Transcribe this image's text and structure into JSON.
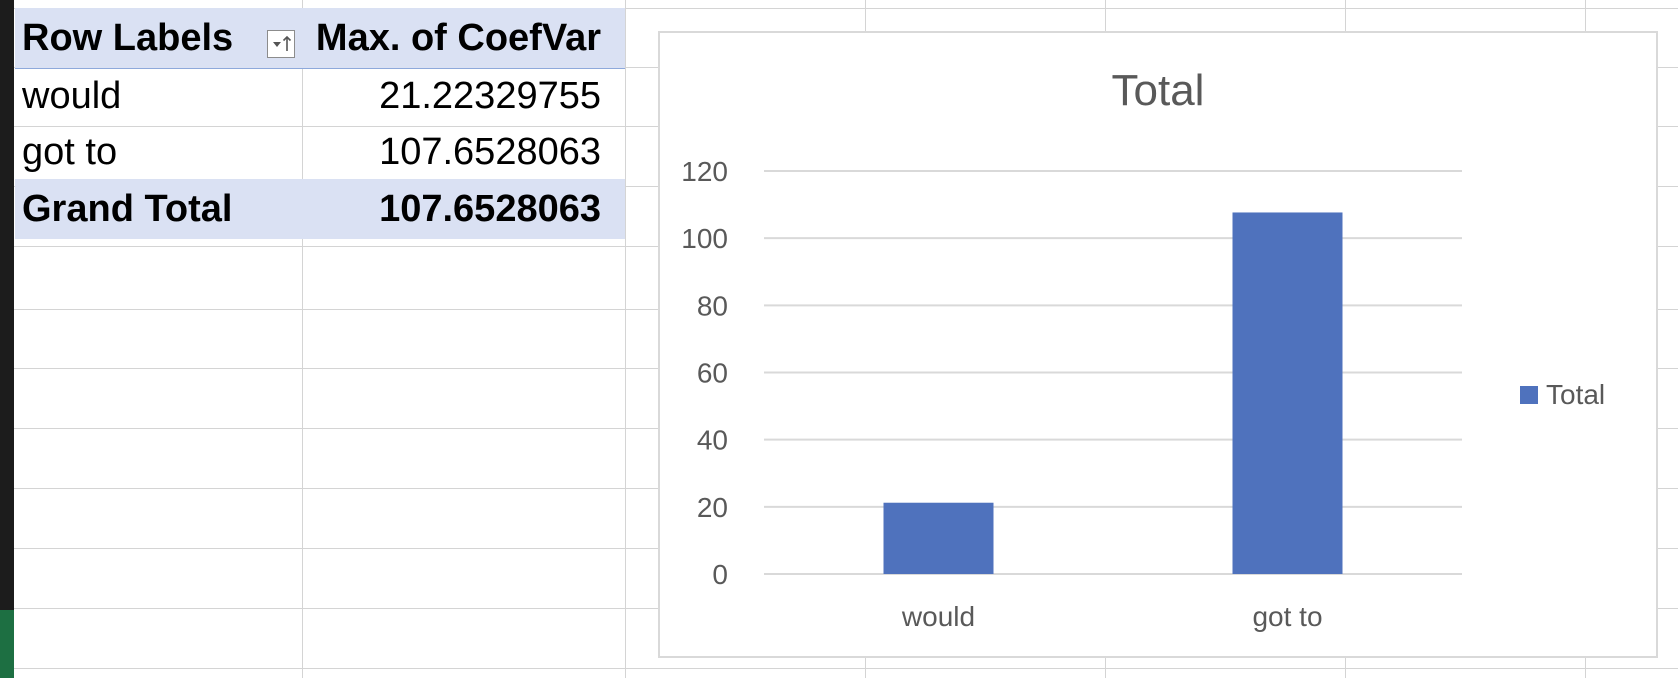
{
  "pivot": {
    "header": {
      "row_labels": "Row Labels",
      "value_header": "Max. of CoefVar"
    },
    "rows": [
      {
        "label": "would",
        "value": "21.22329755"
      },
      {
        "label": "got to",
        "value": "107.6528063"
      }
    ],
    "grand_total": {
      "label": "Grand Total",
      "value": "107.6528063"
    }
  },
  "chart_data": {
    "type": "bar",
    "title": "Total",
    "categories": [
      "would",
      "got to"
    ],
    "series": [
      {
        "name": "Total",
        "values": [
          21.22329755,
          107.6528063
        ],
        "color": "#4f72bd"
      }
    ],
    "ylim": [
      0,
      120
    ],
    "yticks": [
      "0",
      "20",
      "40",
      "60",
      "80",
      "100",
      "120"
    ],
    "grid": true,
    "legend": "right"
  }
}
